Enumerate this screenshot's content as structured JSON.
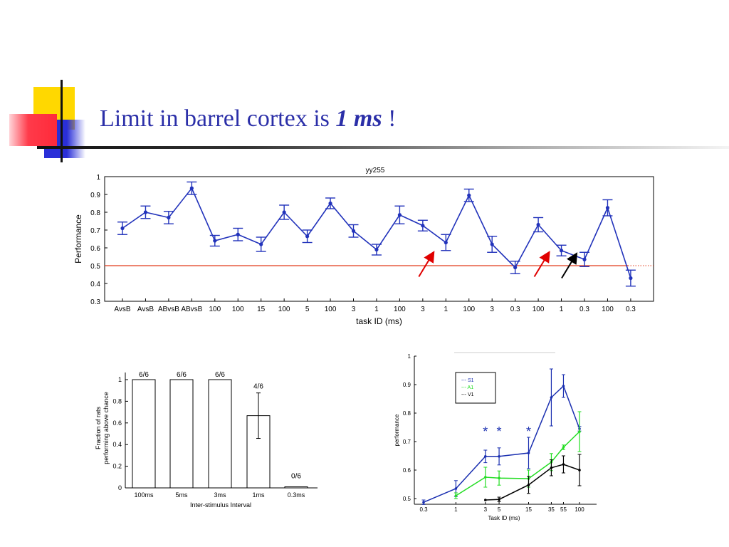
{
  "slide": {
    "title_plain": "Limit in barrel cortex is ",
    "title_emph": "1 ms",
    "title_end": " !"
  },
  "colors": {
    "title": "#2b2fa8",
    "series_blue": "#2233bb",
    "chance_line": "#e23a1a",
    "arrow_red": "#e00000",
    "arrow_black": "#000000",
    "s1": "#1a2fb0",
    "a1": "#22dd22",
    "v1": "#000000"
  },
  "chart_data": [
    {
      "type": "line",
      "title": "yy255",
      "xlabel": "task ID (ms)",
      "ylabel": "Performance",
      "ylim": [
        0.3,
        1
      ],
      "yticks": [
        "0.3",
        "0.4",
        "0.5",
        "0.6",
        "0.7",
        "0.8",
        "0.9",
        "1"
      ],
      "categories": [
        "AvsB",
        "AvsB",
        "ABvsB",
        "ABvsB",
        "100",
        "100",
        "15",
        "100",
        "5",
        "100",
        "3",
        "1",
        "100",
        "3",
        "1",
        "100",
        "3",
        "0.3",
        "100",
        "1",
        "0.3",
        "100",
        "0.3"
      ],
      "values": [
        0.71,
        0.8,
        0.77,
        0.935,
        0.64,
        0.675,
        0.62,
        0.8,
        0.665,
        0.85,
        0.695,
        0.59,
        0.785,
        0.725,
        0.63,
        0.895,
        0.62,
        0.49,
        0.73,
        0.585,
        0.535,
        0.825,
        0.43
      ],
      "errors": [
        0.035,
        0.035,
        0.035,
        0.035,
        0.03,
        0.035,
        0.04,
        0.04,
        0.035,
        0.03,
        0.035,
        0.03,
        0.05,
        0.03,
        0.045,
        0.035,
        0.045,
        0.035,
        0.04,
        0.03,
        0.04,
        0.045,
        0.045
      ],
      "reference_line": 0.5,
      "annotations": [
        {
          "type": "arrow",
          "color": "red",
          "target_category_index": 14
        },
        {
          "type": "arrow",
          "color": "red",
          "target_category_index": 19
        },
        {
          "type": "arrow",
          "color": "black",
          "target_category_index": 20
        }
      ]
    },
    {
      "type": "bar",
      "xlabel": "Inter-stimulus Interval",
      "ylabel": [
        "Fraction of rats",
        "performing above chance"
      ],
      "ylim": [
        0,
        1
      ],
      "yticks": [
        "0",
        "0.2",
        "0.4",
        "0.6",
        "0.8",
        "1"
      ],
      "categories": [
        "100ms",
        "5ms",
        "3ms",
        "1ms",
        "0.3ms"
      ],
      "values": [
        1,
        1,
        1,
        0.667,
        0.01
      ],
      "errors": [
        0,
        0,
        0,
        0.21,
        0
      ],
      "bar_labels": [
        "6/6",
        "6/6",
        "6/6",
        "4/6",
        "0/6"
      ]
    },
    {
      "type": "line",
      "xlabel": "Task ID (ms)",
      "ylabel": "performance",
      "xscale": "log",
      "ylim": [
        0.48,
        1
      ],
      "yticks": [
        "0.5",
        "0.6",
        "0.7",
        "0.8",
        "0.9",
        "1"
      ],
      "xticks": [
        "0.3",
        "1",
        "3",
        "5",
        "15",
        "35",
        "55",
        "100"
      ],
      "legend": [
        "--- S1",
        "--- A1",
        "--- V1"
      ],
      "legend_position": "top-left",
      "series": [
        {
          "name": "S1",
          "x": [
            0.3,
            1,
            3,
            5,
            15,
            35,
            55,
            100
          ],
          "y": [
            0.487,
            0.535,
            0.648,
            0.648,
            0.66,
            0.855,
            0.895,
            0.745
          ],
          "err": [
            0.008,
            0.028,
            0.022,
            0.03,
            0.055,
            0.1,
            0.04,
            0.008
          ]
        },
        {
          "name": "A1",
          "x": [
            1,
            3,
            5,
            15,
            35,
            55,
            100
          ],
          "y": [
            0.51,
            0.575,
            0.572,
            0.57,
            0.628,
            0.68,
            0.735
          ],
          "err": [
            0.01,
            0.035,
            0.025,
            0.03,
            0.03,
            0.008,
            0.07
          ]
        },
        {
          "name": "V1",
          "x": [
            3,
            5,
            15,
            35,
            55,
            100
          ],
          "y": [
            0.495,
            0.497,
            0.548,
            0.608,
            0.62,
            0.6
          ],
          "err": [
            0,
            0.008,
            0.03,
            0.028,
            0.03,
            0.055
          ]
        }
      ],
      "significance_markers": [
        {
          "x": 3,
          "label": "*"
        },
        {
          "x": 5,
          "label": "*"
        },
        {
          "x": 15,
          "label": "*"
        }
      ]
    }
  ]
}
